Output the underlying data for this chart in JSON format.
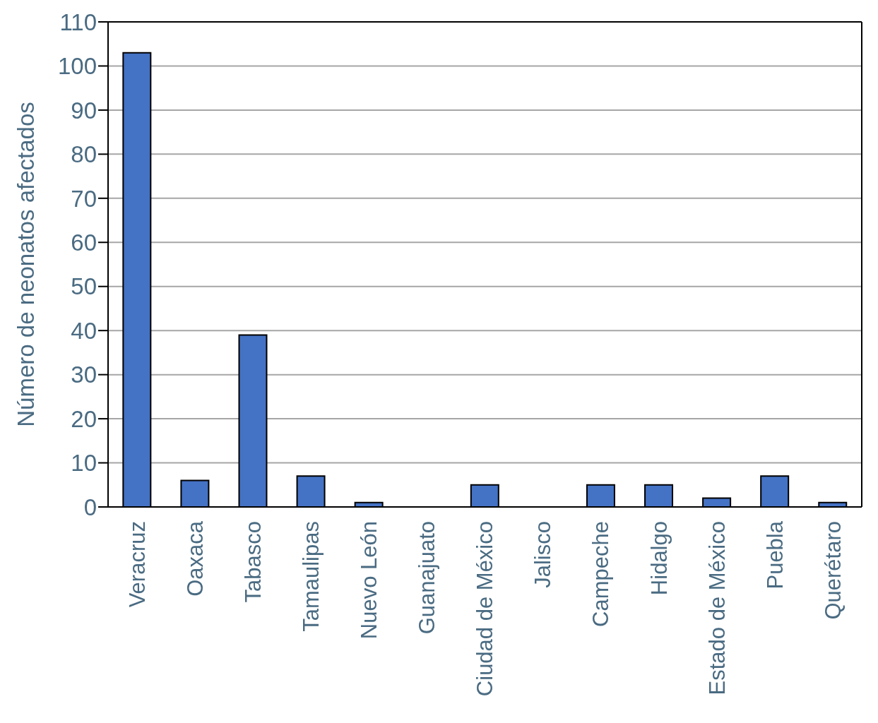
{
  "chart_data": {
    "type": "bar",
    "ylabel": "Número de neonatos afectados",
    "categories": [
      "Veracruz",
      "Oaxaca",
      "Tabasco",
      "Tamaulipas",
      "Nuevo León",
      "Guanajuato",
      "Ciudad de México",
      "Jalisco",
      "Campeche",
      "Hidalgo",
      "Estado de México",
      "Puebla",
      "Querétaro"
    ],
    "values": [
      103,
      6,
      39,
      7,
      1,
      0,
      5,
      0,
      5,
      5,
      2,
      7,
      1
    ],
    "color": "#4472c4",
    "ylim": [
      0,
      110
    ],
    "yticks": [
      0,
      10,
      20,
      30,
      40,
      50,
      60,
      70,
      80,
      90,
      100,
      110
    ],
    "grid": "y",
    "legend": false
  }
}
